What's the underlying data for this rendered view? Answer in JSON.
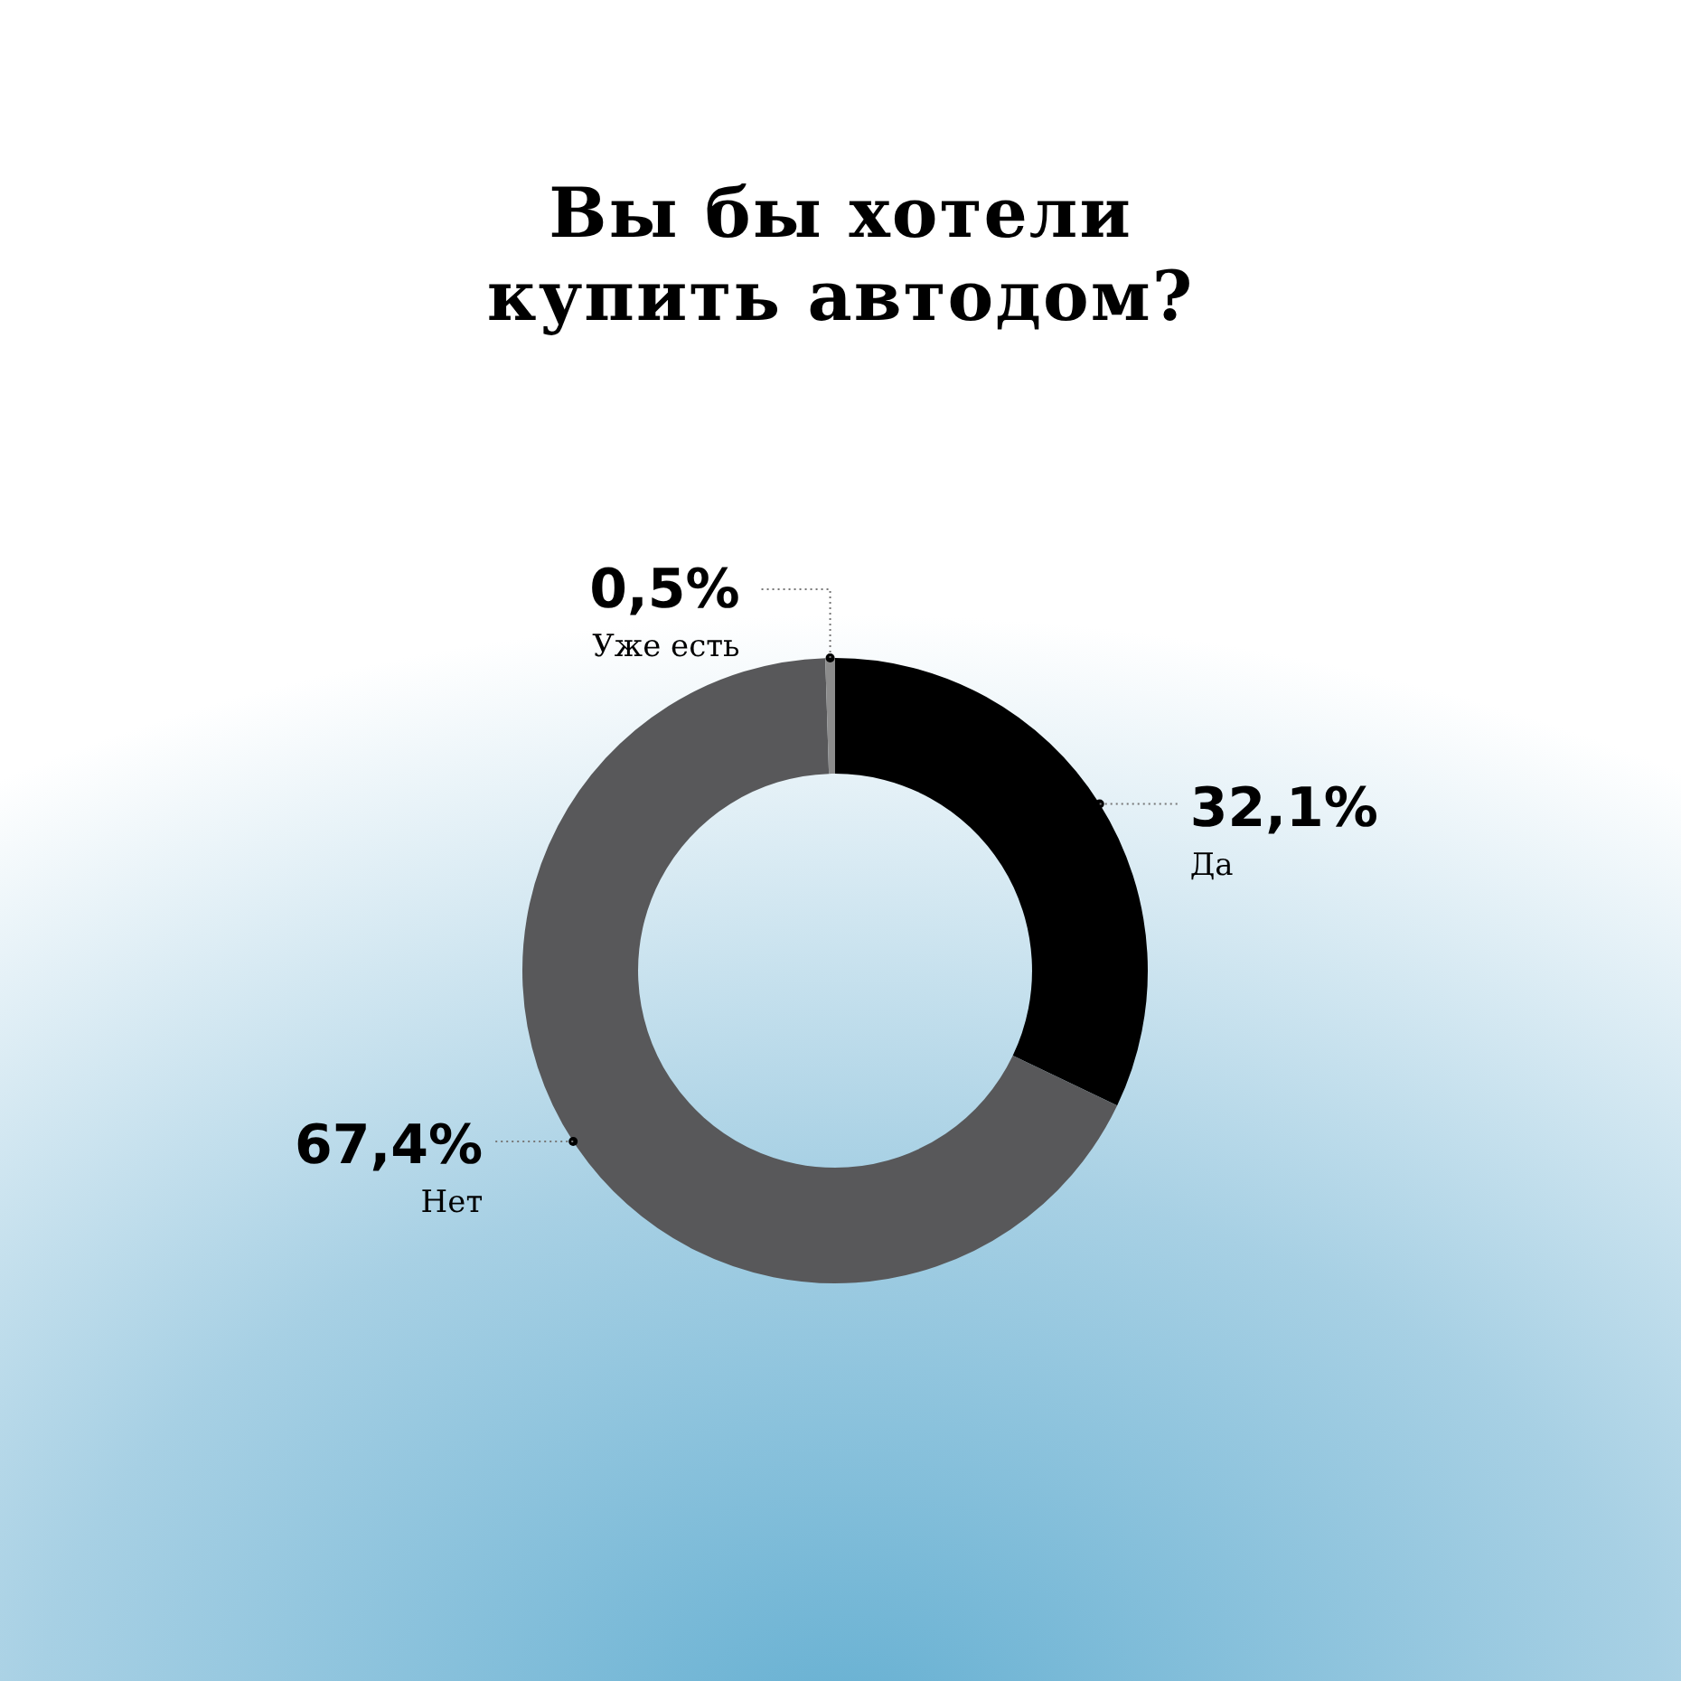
{
  "chart_data": {
    "type": "donut",
    "title": "Вы бы хотели купить автодом?",
    "categories": [
      "Да",
      "Нет",
      "Уже есть"
    ],
    "values": [
      32.1,
      67.4,
      0.5
    ],
    "value_labels": [
      "32,1%",
      "67,4%",
      "0,5%"
    ],
    "colors": [
      "#000000",
      "#58585a",
      "#8c8c8c"
    ],
    "legend": false
  }
}
